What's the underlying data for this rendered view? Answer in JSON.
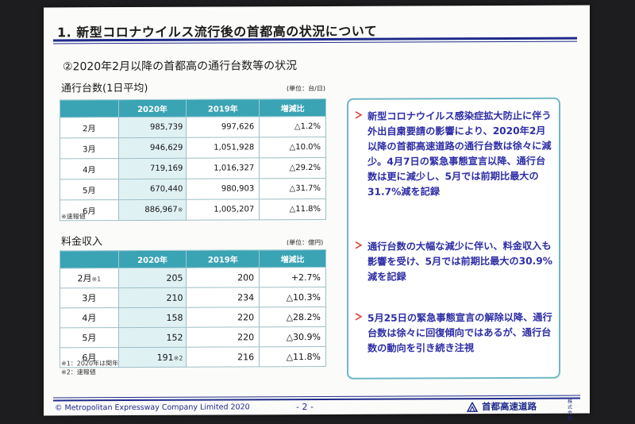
{
  "title": "1. 新型コロナウイルス流行後の首都高の状況について",
  "subtitle": "②2020年2月以降の首都高の通行台数等の状況",
  "traffic": {
    "label": "通行台数(1日平均)",
    "unit": "(単位：台/日)",
    "headers": [
      "",
      "2020年",
      "2019年",
      "増減比"
    ],
    "rows": [
      {
        "month": "2月",
        "y2020": "985,739",
        "y2020_note": "",
        "y2019": "997,626",
        "change": "△1.2%"
      },
      {
        "month": "3月",
        "y2020": "946,629",
        "y2020_note": "",
        "y2019": "1,051,928",
        "change": "△10.0%"
      },
      {
        "month": "4月",
        "y2020": "719,169",
        "y2020_note": "",
        "y2019": "1,016,327",
        "change": "△29.2%"
      },
      {
        "month": "5月",
        "y2020": "670,440",
        "y2020_note": "",
        "y2019": "980,903",
        "change": "△31.7%"
      },
      {
        "month": "6月",
        "y2020": "886,967",
        "y2020_note": "※",
        "y2019": "1,005,207",
        "change": "△11.8%"
      }
    ],
    "note": "※速報値"
  },
  "revenue": {
    "label": "料金収入",
    "unit": "(単位：億円)",
    "headers": [
      "",
      "2020年",
      "2019年",
      "増減比"
    ],
    "rows": [
      {
        "month": "2月",
        "month_note": "※1",
        "y2020": "205",
        "y2020_note": "",
        "y2019": "200",
        "change": "+2.7%"
      },
      {
        "month": "3月",
        "month_note": "",
        "y2020": "210",
        "y2020_note": "",
        "y2019": "234",
        "change": "△10.3%"
      },
      {
        "month": "4月",
        "month_note": "",
        "y2020": "158",
        "y2020_note": "",
        "y2019": "220",
        "change": "△28.2%"
      },
      {
        "month": "5月",
        "month_note": "",
        "y2020": "152",
        "y2020_note": "",
        "y2019": "220",
        "change": "△30.9%"
      },
      {
        "month": "6月",
        "month_note": "",
        "y2020": "191",
        "y2020_note": "※2",
        "y2019": "216",
        "change": "△11.8%"
      }
    ],
    "notes": [
      "※1：2020年は閏年",
      "※2：速報値"
    ]
  },
  "bullets": [
    "新型コロナウイルス感染症拡大防止に伴う外出自粛要請の影響により、2020年2月以降の首都高速道路の通行台数は徐々に減少。4月7日の緊急事態宣言以降、通行台数は更に減少し、5月では前期比最大の31.7%減を記録",
    "通行台数の大幅な減少に伴い、料金収入も影響を受け、5月では前期比最大の30.9%減を記録",
    "5月25日の緊急事態宣言の解除以降、通行台数は徐々に回復傾向ではあるが、通行台数の動向を引き続き注視"
  ],
  "footer": {
    "copyright": "©  Metropolitan Expressway Company Limited  2020",
    "page": "- 2 -",
    "company": "首都高速道路",
    "company_suffix": "株式会社"
  },
  "colors": {
    "accent": "#1e2a8c",
    "table_header": "#3aa3b4",
    "bullet_text": "#2e2ea6",
    "arrow": "#e0413b"
  },
  "icons": {
    "bullet": "arrow-right-icon",
    "logo": "company-logo-icon"
  }
}
